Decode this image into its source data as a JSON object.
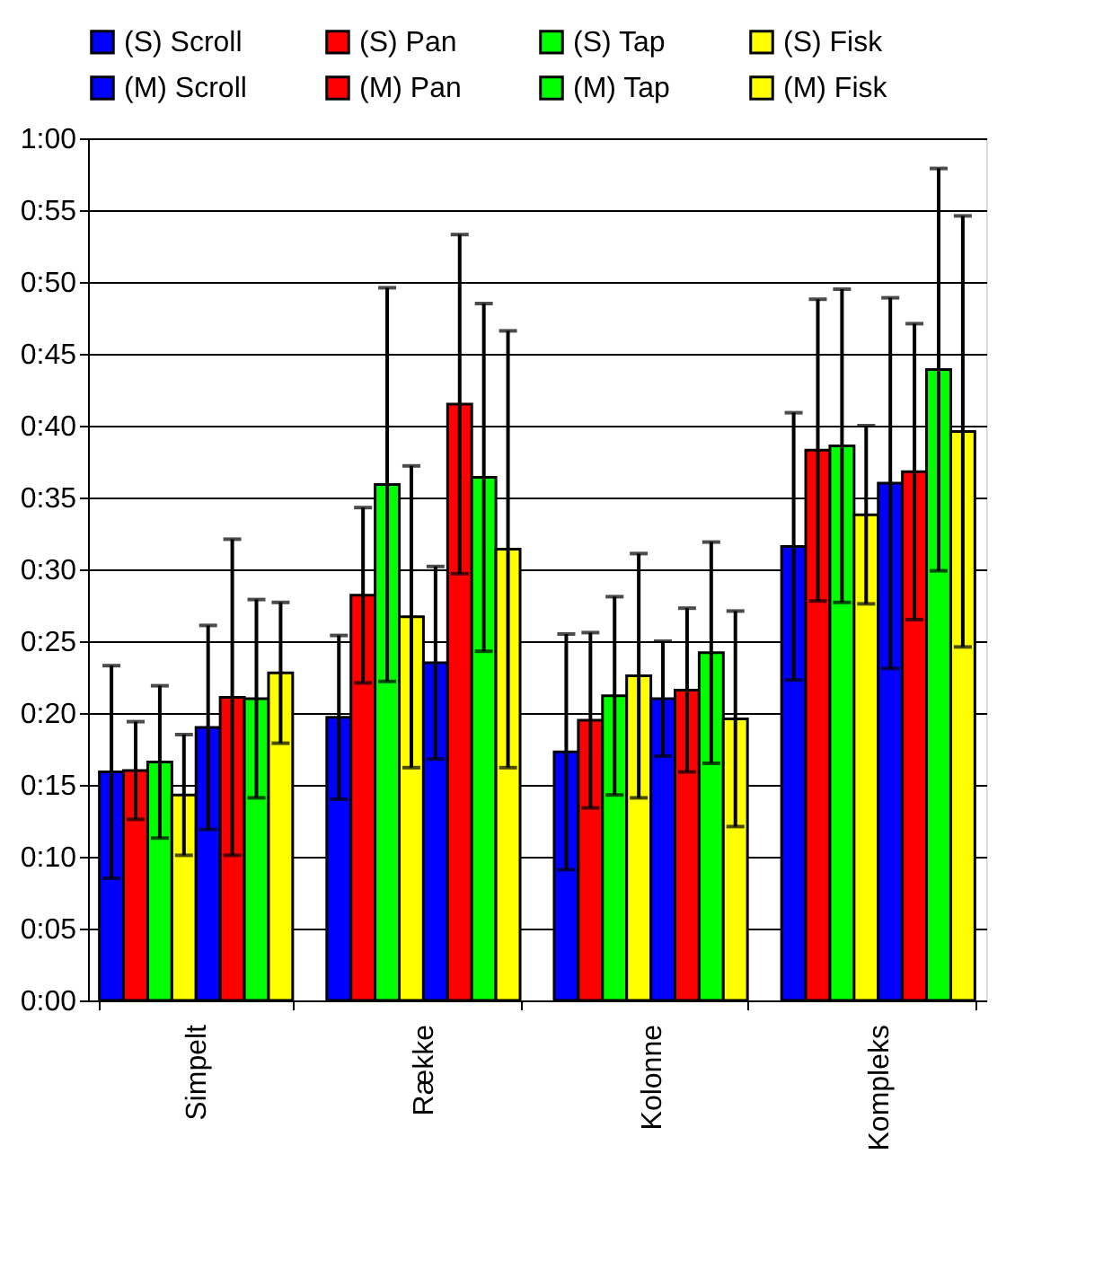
{
  "chart_data": {
    "type": "bar",
    "categories": [
      "Simpelt",
      "Række",
      "Kolonne",
      "Kompleks"
    ],
    "series": [
      {
        "name": "(S) Scroll",
        "color": "#0000ff",
        "values": [
          15.9,
          19.7,
          17.3,
          31.6
        ],
        "errors": [
          7.4,
          5.7,
          8.2,
          9.3
        ]
      },
      {
        "name": "(S) Pan",
        "color": "#ff0000",
        "values": [
          16.0,
          28.2,
          19.5,
          38.3
        ],
        "errors": [
          3.4,
          6.1,
          6.1,
          10.5
        ]
      },
      {
        "name": "(S) Tap",
        "color": "#00ff00",
        "values": [
          16.6,
          35.9,
          21.2,
          38.6
        ],
        "errors": [
          5.3,
          13.7,
          6.9,
          10.9
        ]
      },
      {
        "name": "(S) Fisk",
        "color": "#ffff00",
        "values": [
          14.3,
          26.7,
          22.6,
          33.8
        ],
        "errors": [
          4.2,
          10.5,
          8.5,
          6.2
        ]
      },
      {
        "name": "(M) Scroll",
        "color": "#0000ff",
        "values": [
          19.0,
          23.5,
          21.0,
          36.0
        ],
        "errors": [
          7.1,
          6.7,
          4.0,
          12.9
        ]
      },
      {
        "name": "(M) Pan",
        "color": "#ff0000",
        "values": [
          21.1,
          41.5,
          21.6,
          36.8
        ],
        "errors": [
          11.0,
          11.8,
          5.7,
          10.3
        ]
      },
      {
        "name": "(M) Tap",
        "color": "#00ff00",
        "values": [
          21.0,
          36.4,
          24.2,
          43.9
        ],
        "errors": [
          6.9,
          12.1,
          7.7,
          14.0
        ]
      },
      {
        "name": "(M) Fisk",
        "color": "#ffff00",
        "values": [
          22.8,
          31.4,
          19.6,
          39.6
        ],
        "errors": [
          4.9,
          15.2,
          7.5,
          15.0
        ]
      }
    ],
    "ylim": [
      0,
      60
    ],
    "yticks": [
      {
        "value": 0,
        "label": "0:00"
      },
      {
        "value": 5,
        "label": "0:05"
      },
      {
        "value": 10,
        "label": "0:10"
      },
      {
        "value": 15,
        "label": "0:15"
      },
      {
        "value": 20,
        "label": "0:20"
      },
      {
        "value": 25,
        "label": "0:25"
      },
      {
        "value": 30,
        "label": "0:30"
      },
      {
        "value": 35,
        "label": "0:35"
      },
      {
        "value": 40,
        "label": "0:40"
      },
      {
        "value": 45,
        "label": "0:45"
      },
      {
        "value": 50,
        "label": "0:50"
      },
      {
        "value": 55,
        "label": "0:55"
      },
      {
        "value": 60,
        "label": "1:00"
      }
    ],
    "grid": "y",
    "legend": "top"
  }
}
